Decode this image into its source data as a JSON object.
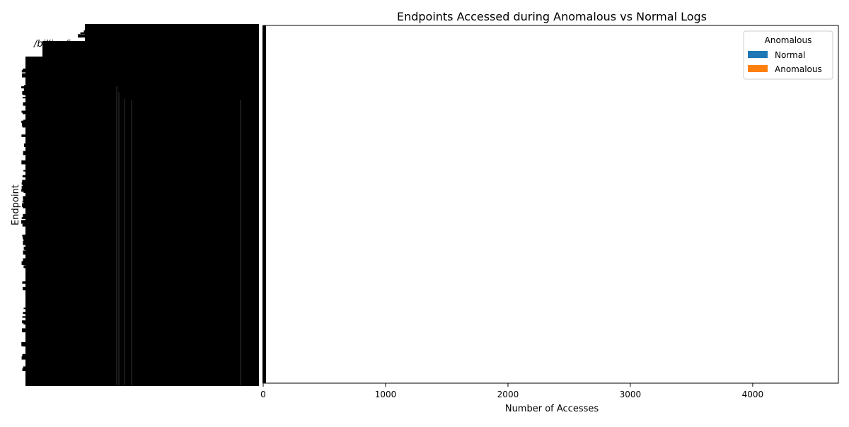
{
  "chart_data": {
    "type": "bar",
    "orientation": "horizontal",
    "title": "Endpoints Accessed during Anomalous vs Normal Logs",
    "xlabel": "Number of Accesses",
    "ylabel": "Endpoint",
    "xlim": [
      0,
      4700
    ],
    "xticks": [
      0,
      1000,
      2000,
      3000,
      4000
    ],
    "grid": false,
    "legend": {
      "title": "Anomalous",
      "placement": "top-right",
      "entries": [
        {
          "label": "Normal",
          "color": "#1f77b4"
        },
        {
          "label": "Anomalous",
          "color": "#ff7f0e"
        }
      ]
    },
    "categories": [
      "/billing/invoice",
      "/billing/invoices",
      "/billing/payment",
      "/billing/refund",
      "/billing/history",
      "/api/v1/users",
      "/api/v1/login",
      "/api/v1/logout",
      "/api/v1/orders",
      "/api/v1/products",
      "/api/v1/cart",
      "/api/v1/search",
      "/api/v2/users",
      "/api/v2/orders",
      "/auth/token",
      "/auth/refresh",
      "/account/profile",
      "/account/settings",
      "/admin/dashboard",
      "/admin/users",
      "/reports/daily",
      "/reports/monthly",
      "/health",
      "/metrics",
      "/status"
    ],
    "series": [
      {
        "name": "Normal",
        "color": "#1f77b4",
        "values": [
          3,
          2,
          4,
          1,
          2,
          5,
          3,
          2,
          4,
          3,
          2,
          1,
          3,
          2,
          4,
          1,
          2,
          3,
          1,
          2,
          1,
          2,
          6,
          4,
          3
        ]
      },
      {
        "name": "Anomalous",
        "color": "#ff7f0e",
        "values": [
          1,
          0,
          1,
          0,
          0,
          1,
          2,
          0,
          1,
          0,
          1,
          0,
          0,
          1,
          1,
          0,
          0,
          1,
          0,
          1,
          0,
          0,
          1,
          1,
          0
        ]
      }
    ],
    "note_visible": "Tick labels overlap into an unreadable dense black block along the y-axis; only '/billing/inv...' is partially legible."
  }
}
